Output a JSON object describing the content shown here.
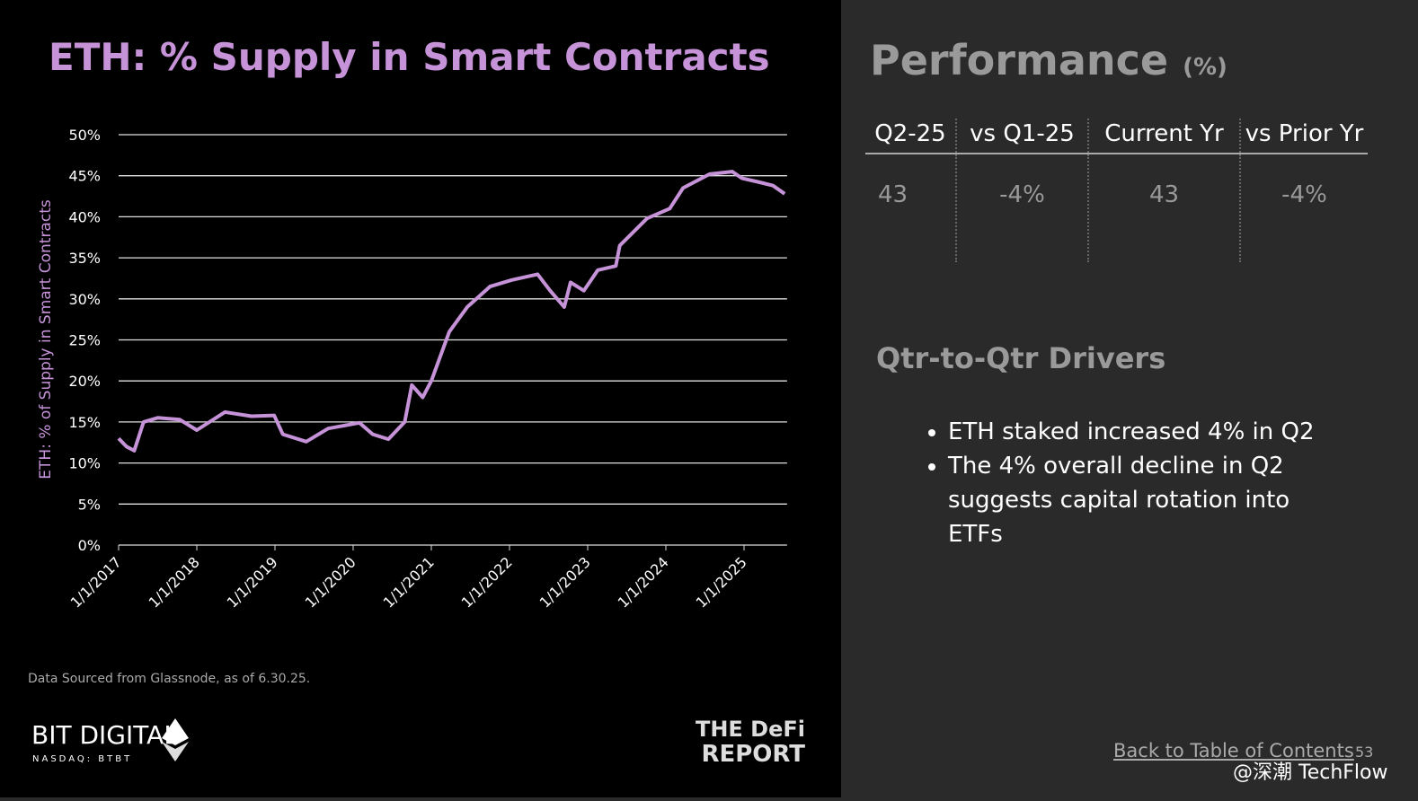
{
  "chart_data": {
    "type": "line",
    "title": "ETH: % Supply in Smart Contracts",
    "y_label": "ETH: % of Supply in Smart Contracts",
    "x": [
      2017.0,
      2017.1,
      2017.2,
      2017.32,
      2017.5,
      2017.78,
      2018.0,
      2018.36,
      2018.7,
      2018.99,
      2019.1,
      2019.4,
      2019.68,
      2020.08,
      2020.25,
      2020.45,
      2020.66,
      2020.75,
      2020.89,
      2021.0,
      2021.23,
      2021.46,
      2021.75,
      2022.03,
      2022.36,
      2022.52,
      2022.7,
      2022.78,
      2022.95,
      2023.13,
      2023.36,
      2023.41,
      2023.76,
      2024.05,
      2024.22,
      2024.56,
      2024.85,
      2024.97,
      2025.2,
      2025.37,
      2025.52
    ],
    "values": [
      13,
      12,
      11.5,
      15,
      15.5,
      15.3,
      14,
      16.2,
      15.7,
      15.8,
      13.5,
      12.6,
      14.2,
      14.9,
      13.5,
      12.9,
      15,
      19.5,
      18,
      20,
      26,
      29,
      31.5,
      32.3,
      33,
      31,
      29,
      32,
      31,
      33.5,
      34,
      36.5,
      39.8,
      41,
      43.5,
      45.2,
      45.5,
      44.7,
      44.2,
      43.8,
      42.8
    ],
    "color": "#c693d8",
    "xlim": [
      2017,
      2025.55
    ],
    "xticks": [
      {
        "value": 2017,
        "label": "1/1/2017"
      },
      {
        "value": 2018,
        "label": "1/1/2018"
      },
      {
        "value": 2019,
        "label": "1/1/2019"
      },
      {
        "value": 2020,
        "label": "1/1/2020"
      },
      {
        "value": 2021,
        "label": "1/1/2021"
      },
      {
        "value": 2022,
        "label": "1/1/2022"
      },
      {
        "value": 2023,
        "label": "1/1/2023"
      },
      {
        "value": 2024,
        "label": "1/1/2024"
      },
      {
        "value": 2025,
        "label": "1/1/2025"
      }
    ],
    "ylim": [
      0,
      50
    ],
    "yticks": [
      {
        "value": 0,
        "label": "0%"
      },
      {
        "value": 5,
        "label": "5%"
      },
      {
        "value": 10,
        "label": "10%"
      },
      {
        "value": 15,
        "label": "15%"
      },
      {
        "value": 20,
        "label": "20%"
      },
      {
        "value": 25,
        "label": "25%"
      },
      {
        "value": 30,
        "label": "30%"
      },
      {
        "value": 35,
        "label": "35%"
      },
      {
        "value": 40,
        "label": "40%"
      },
      {
        "value": 45,
        "label": "45%"
      },
      {
        "value": 50,
        "label": "50%"
      }
    ],
    "grid": true,
    "source": "Data Sourced from Glassnode, as of 6.30.25."
  },
  "logos": {
    "left": "BIT DIGITAL",
    "left_sub": "NASDAQ: BTBT",
    "right_top": "THE DeFi",
    "right_bottom": "REPORT"
  },
  "performance": {
    "title": "Performance",
    "unit": "(%)",
    "headers": [
      "Q2-25",
      "vs Q1-25",
      "Current Yr",
      "vs Prior Yr"
    ],
    "row": [
      "43",
      "-4%",
      "43",
      "-4%"
    ]
  },
  "drivers": {
    "title": "Qtr-to-Qtr Drivers",
    "bullets": [
      "ETH staked increased 4% in Q2",
      "The 4% overall decline in Q2 suggests capital rotation into ETFs"
    ]
  },
  "footer": {
    "link": "Back to Table of Contents",
    "page": "53",
    "watermark": "@深潮 TechFlow"
  }
}
